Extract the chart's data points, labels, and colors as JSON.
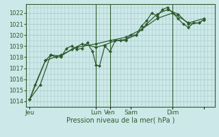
{
  "bg_color": "#cce8e8",
  "grid_color": "#aacccc",
  "line_color": "#2d5a2d",
  "marker_color": "#2d5a2d",
  "xlabel": "Pression niveau de la mer( hPa )",
  "ylim": [
    1013.5,
    1022.8
  ],
  "yticks": [
    1014,
    1015,
    1016,
    1017,
    1018,
    1019,
    1020,
    1021,
    1022
  ],
  "xlim": [
    -2,
    106
  ],
  "xtick_positions": [
    0,
    38,
    46,
    58,
    82,
    100
  ],
  "xtick_labels": [
    "Jeu",
    "Lun",
    "Ven",
    "Sam",
    "Dim",
    ""
  ],
  "vline_positions": [
    38,
    46,
    82
  ],
  "series1": [
    [
      0,
      1014.2
    ],
    [
      3,
      1015.5
    ],
    [
      9,
      1017.7
    ],
    [
      12,
      1018.2
    ],
    [
      15,
      1018.0
    ],
    [
      18,
      1018.0
    ],
    [
      21,
      1018.8
    ],
    [
      24,
      1019.0
    ],
    [
      27,
      1018.7
    ],
    [
      30,
      1018.8
    ],
    [
      33,
      1019.3
    ],
    [
      36,
      1018.5
    ],
    [
      38,
      1017.3
    ],
    [
      40,
      1017.2
    ],
    [
      43,
      1019.0
    ],
    [
      46,
      1018.5
    ],
    [
      49,
      1019.5
    ],
    [
      52,
      1019.5
    ],
    [
      55,
      1019.5
    ],
    [
      58,
      1020.0
    ],
    [
      61,
      1020.0
    ],
    [
      64,
      1020.8
    ],
    [
      67,
      1021.3
    ],
    [
      70,
      1022.0
    ],
    [
      73,
      1021.7
    ],
    [
      76,
      1022.3
    ],
    [
      79,
      1022.5
    ],
    [
      82,
      1022.0
    ],
    [
      85,
      1021.5
    ],
    [
      88,
      1021.0
    ],
    [
      91,
      1020.7
    ],
    [
      94,
      1021.1
    ],
    [
      97,
      1021.1
    ],
    [
      100,
      1021.4
    ]
  ],
  "series2": [
    [
      0,
      1014.2
    ],
    [
      6,
      1015.5
    ],
    [
      12,
      1018.2
    ],
    [
      18,
      1018.1
    ],
    [
      24,
      1018.7
    ],
    [
      30,
      1019.2
    ],
    [
      38,
      1018.9
    ],
    [
      43,
      1019.1
    ],
    [
      49,
      1019.5
    ],
    [
      55,
      1019.6
    ],
    [
      61,
      1020.0
    ],
    [
      67,
      1021.0
    ],
    [
      73,
      1021.9
    ],
    [
      79,
      1022.3
    ],
    [
      85,
      1021.9
    ],
    [
      91,
      1021.0
    ],
    [
      97,
      1021.1
    ],
    [
      100,
      1021.4
    ]
  ],
  "series3": [
    [
      0,
      1014.2
    ],
    [
      9,
      1017.7
    ],
    [
      18,
      1018.2
    ],
    [
      27,
      1018.9
    ],
    [
      38,
      1019.2
    ],
    [
      46,
      1019.5
    ],
    [
      55,
      1019.8
    ],
    [
      64,
      1020.5
    ],
    [
      73,
      1021.5
    ],
    [
      82,
      1022.0
    ],
    [
      91,
      1021.1
    ],
    [
      100,
      1021.5
    ]
  ]
}
